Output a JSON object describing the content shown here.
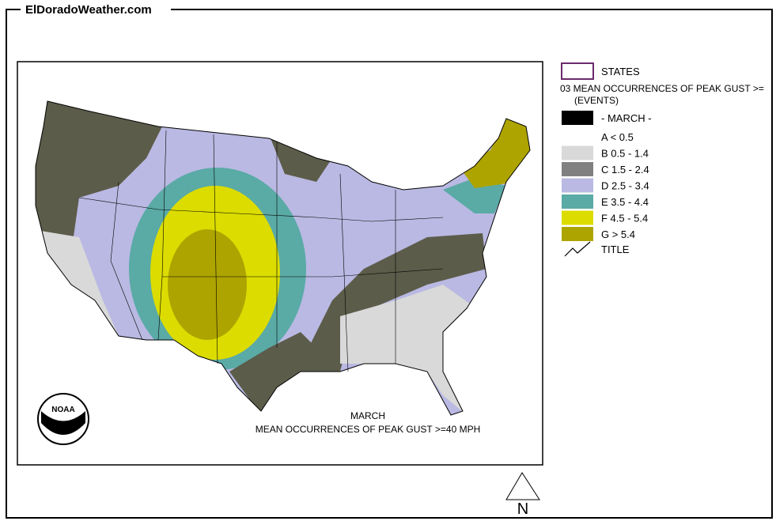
{
  "header": {
    "site": "ElDoradoWeather.com"
  },
  "map": {
    "caption": [
      "MARCH",
      "MEAN OCCURRENCES OF PEAK GUST >=40 MPH"
    ],
    "logo": "NOAA",
    "compass": "N"
  },
  "legend": {
    "states": "STATES",
    "title": [
      "03 MEAN OCCURRENCES OF PEAK GUST >=",
      "(EVENTS)"
    ],
    "month": "- MARCH -",
    "items": [
      {
        "label": "A < 0.5",
        "color": "#ffffff"
      },
      {
        "label": "B 0.5 - 1.4",
        "color": "#d9d9d9"
      },
      {
        "label": "C 1.5 - 2.4",
        "color": "#808080"
      },
      {
        "label": "D 2.5 - 3.4",
        "color": "#b9b9e3"
      },
      {
        "label": "E 3.5 - 4.4",
        "color": "#5aaaa6"
      },
      {
        "label": "F 4.5 - 5.4",
        "color": "#dcdc00"
      },
      {
        "label": "G > 5.4",
        "color": "#aea400"
      }
    ],
    "title_key": "TITLE"
  }
}
